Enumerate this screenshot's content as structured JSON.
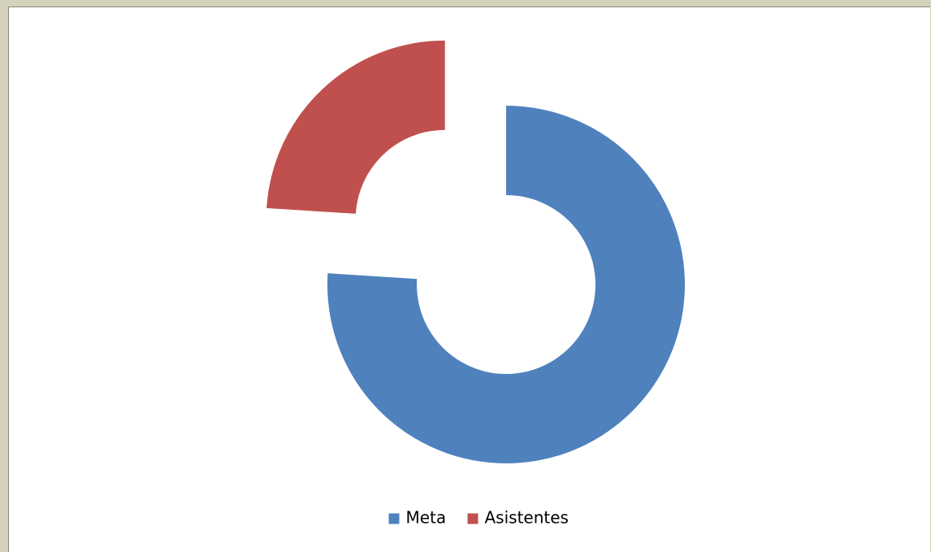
{
  "chart_data": {
    "type": "donut",
    "categories": [
      "Meta",
      "Asistentes"
    ],
    "values": [
      76,
      24
    ],
    "colors": [
      "#4f81bd",
      "#c0504d"
    ],
    "exploded": [
      false,
      true
    ],
    "legend": "bottom"
  }
}
